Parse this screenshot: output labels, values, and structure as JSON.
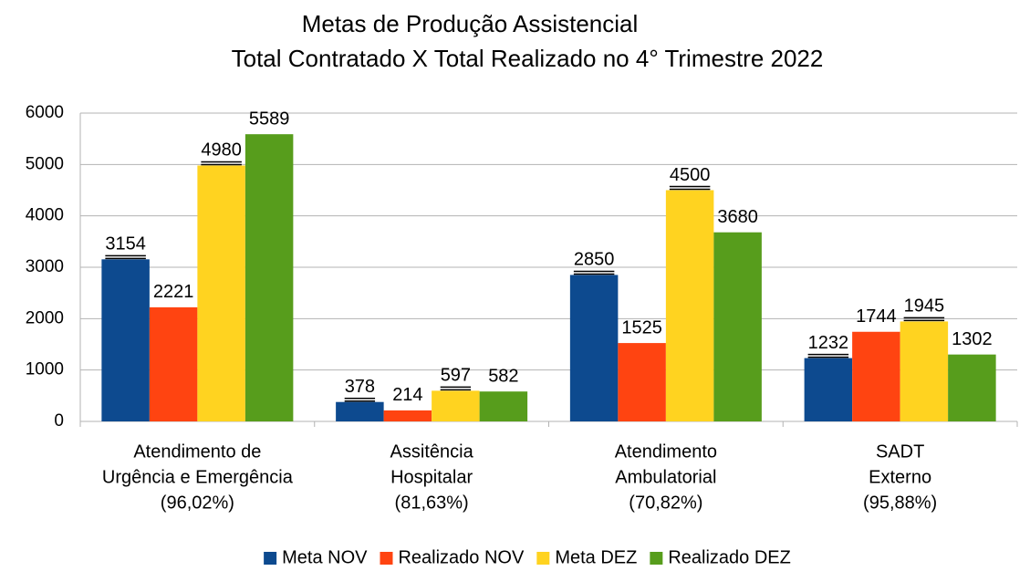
{
  "chart_data": {
    "type": "bar",
    "title": "Metas de Produção Assistencial",
    "subtitle": "Total Contratado X Total Realizado no 4° Trimestre 2022",
    "categories": [
      [
        "Atendimento de",
        "Urgência e Emergência",
        "(96,02%)"
      ],
      [
        "Assitência",
        "Hospitalar",
        "(81,63%)"
      ],
      [
        "Atendimento",
        "Ambulatorial",
        "(70,82%)"
      ],
      [
        "SADT",
        "Externo",
        "(95,88%)"
      ]
    ],
    "series": [
      {
        "name": "Meta NOV",
        "color": "#0d4a8f",
        "label_color": "#000000",
        "values": [
          3154,
          378,
          2850,
          1232
        ]
      },
      {
        "name": "Realizado NOV",
        "color": "#ff4411",
        "label_color": "#c9211e",
        "values": [
          2221,
          214,
          1525,
          1744
        ]
      },
      {
        "name": "Meta DEZ",
        "color": "#ffd320",
        "label_color": "#000000",
        "values": [
          4980,
          597,
          4500,
          1945
        ]
      },
      {
        "name": "Realizado DEZ",
        "color": "#579d1c",
        "label_color": "#3a8a3a",
        "values": [
          5589,
          582,
          3680,
          1302
        ]
      }
    ],
    "ylim": [
      0,
      6000
    ],
    "yticks": [
      0,
      1000,
      2000,
      3000,
      4000,
      5000,
      6000
    ],
    "grid": true,
    "legend": "bottom"
  }
}
